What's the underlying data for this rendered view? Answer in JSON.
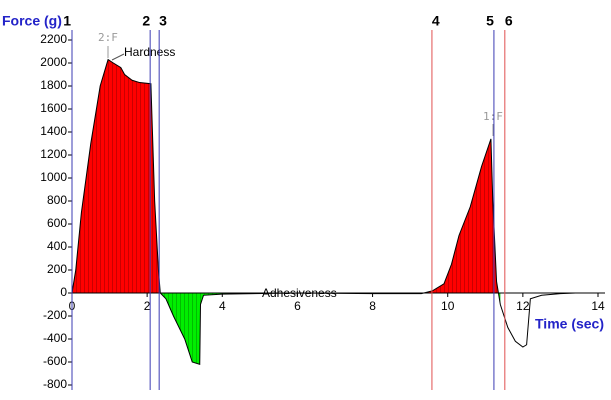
{
  "chart_data": {
    "type": "line",
    "ylabel": "Force (g)",
    "xlabel": "Time (sec)",
    "xlim": [
      0,
      14
    ],
    "xticks": [
      0,
      2,
      4,
      6,
      8,
      10,
      12,
      14
    ],
    "ylim": [
      -800,
      2200
    ],
    "yticks": [
      -800,
      -600,
      -400,
      -200,
      0,
      200,
      400,
      600,
      800,
      1000,
      1200,
      1400,
      1600,
      1800,
      2000,
      2200
    ],
    "x": [
      0,
      0.1,
      0.25,
      0.5,
      0.75,
      0.96,
      1.1,
      1.3,
      1.4,
      1.6,
      1.8,
      2.1,
      2.2,
      2.3,
      2.35,
      2.5,
      2.7,
      3.0,
      3.2,
      3.4,
      3.42,
      3.5,
      4,
      6,
      8,
      9.3,
      9.6,
      9.9,
      10.1,
      10.3,
      10.6,
      10.9,
      11.15,
      11.2,
      11.3,
      11.4,
      11.6,
      11.8,
      12.0,
      12.1,
      12.2,
      12.5,
      13,
      13.4
    ],
    "series": [
      {
        "color": "#000000",
        "values": [
          0,
          200,
          700,
          1300,
          1800,
          2030,
          2000,
          1960,
          1900,
          1850,
          1830,
          1820,
          800,
          200,
          0,
          -50,
          -200,
          -400,
          -600,
          -620,
          -100,
          -20,
          -10,
          0,
          -5,
          -5,
          20,
          80,
          250,
          500,
          750,
          1100,
          1340,
          800,
          100,
          -100,
          -300,
          -420,
          -470,
          -450,
          -50,
          -20,
          -5,
          0
        ]
      }
    ],
    "positive_fill": "#ff0000",
    "negative_fill": "#00ee00",
    "markers": [
      {
        "label": "1",
        "x": 0,
        "color": "#3b3bb3"
      },
      {
        "label": "2",
        "x": 2.08,
        "color": "#3b3bb3"
      },
      {
        "label": "3",
        "x": 2.32,
        "color": "#3b3bb3"
      },
      {
        "label": "4",
        "x": 9.58,
        "color": "#e05050"
      },
      {
        "label": "5",
        "x": 11.23,
        "color": "#3b3bb3"
      },
      {
        "label": "6",
        "x": 11.52,
        "color": "#e05050"
      }
    ],
    "annotations": [
      "2:F",
      "Hardness",
      "1:F",
      "Adhesiveness"
    ]
  }
}
